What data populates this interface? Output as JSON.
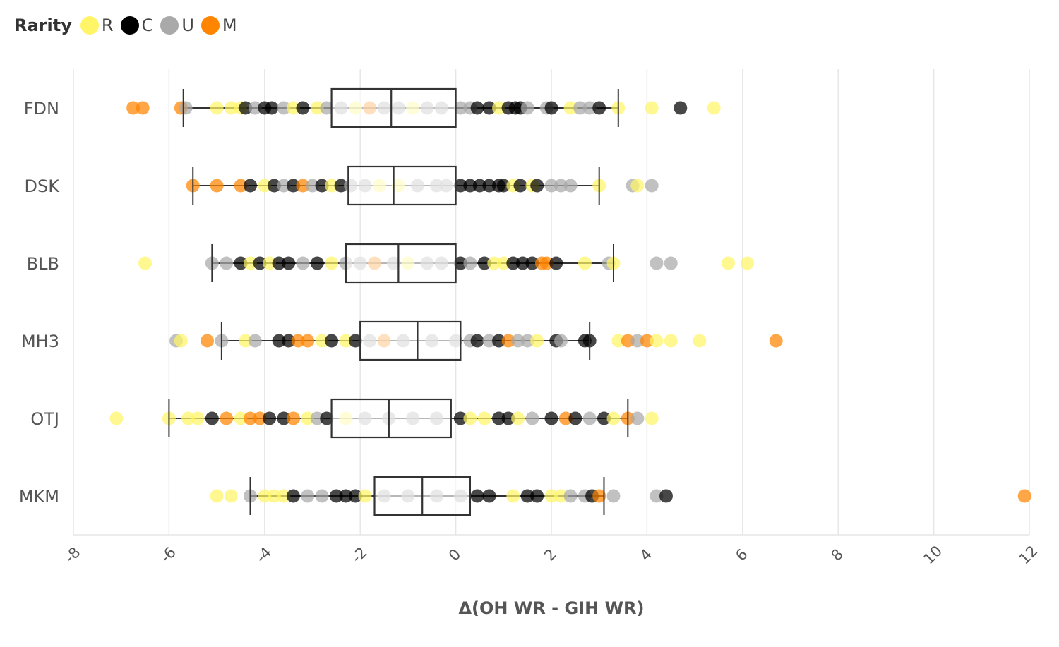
{
  "chart_data": {
    "type": "box-strip",
    "xlabel": "Δ(OH WR - GIH WR)",
    "ylabel": "",
    "xlim": [
      -8,
      12
    ],
    "xticks": [
      -8,
      -6,
      -4,
      -2,
      0,
      2,
      4,
      6,
      8,
      10,
      12
    ],
    "grid": true,
    "legend": {
      "title": "Rarity",
      "placement": "top-left",
      "entries": [
        {
          "key": "R",
          "label": "R",
          "color": "#fff566"
        },
        {
          "key": "C",
          "label": "C",
          "color": "#000000"
        },
        {
          "key": "U",
          "label": "U",
          "color": "#a9a9a9"
        },
        {
          "key": "M",
          "label": "M",
          "color": "#ff8400"
        }
      ]
    },
    "sets": [
      {
        "name": "FDN",
        "box": {
          "whisker_low": -5.7,
          "q1": -2.6,
          "median": -1.35,
          "q3": 0.0,
          "whisker_high": 3.4
        },
        "points": [
          [
            -6.75,
            "M"
          ],
          [
            -6.55,
            "M"
          ],
          [
            -5.75,
            "M"
          ],
          [
            -5.65,
            "U"
          ],
          [
            -5.0,
            "R"
          ],
          [
            -4.7,
            "R"
          ],
          [
            -4.5,
            "R"
          ],
          [
            -4.4,
            "C"
          ],
          [
            -4.2,
            "U"
          ],
          [
            -4.0,
            "C"
          ],
          [
            -3.85,
            "C"
          ],
          [
            -3.6,
            "U"
          ],
          [
            -3.4,
            "R"
          ],
          [
            -3.2,
            "C"
          ],
          [
            -2.9,
            "R"
          ],
          [
            -2.7,
            "U"
          ],
          [
            -2.4,
            "U"
          ],
          [
            -2.1,
            "R"
          ],
          [
            -1.8,
            "M"
          ],
          [
            -1.5,
            "U"
          ],
          [
            -1.2,
            "U"
          ],
          [
            -0.9,
            "R"
          ],
          [
            -0.6,
            "U"
          ],
          [
            -0.3,
            "U"
          ],
          [
            0.1,
            "U"
          ],
          [
            0.3,
            "U"
          ],
          [
            0.45,
            "C"
          ],
          [
            0.7,
            "C"
          ],
          [
            0.9,
            "R"
          ],
          [
            1.1,
            "C"
          ],
          [
            1.25,
            "C"
          ],
          [
            1.35,
            "C"
          ],
          [
            1.5,
            "U"
          ],
          [
            1.9,
            "U"
          ],
          [
            2.0,
            "C"
          ],
          [
            2.4,
            "R"
          ],
          [
            2.6,
            "U"
          ],
          [
            2.8,
            "U"
          ],
          [
            3.0,
            "C"
          ],
          [
            3.4,
            "R"
          ],
          [
            4.1,
            "R"
          ],
          [
            4.7,
            "C"
          ],
          [
            5.4,
            "R"
          ]
        ]
      },
      {
        "name": "DSK",
        "box": {
          "whisker_low": -5.5,
          "q1": -2.25,
          "median": -1.3,
          "q3": 0.0,
          "whisker_high": 3.0
        },
        "points": [
          [
            -5.5,
            "M"
          ],
          [
            -5.0,
            "M"
          ],
          [
            -4.5,
            "M"
          ],
          [
            -4.3,
            "C"
          ],
          [
            -4.0,
            "R"
          ],
          [
            -3.8,
            "C"
          ],
          [
            -3.6,
            "U"
          ],
          [
            -3.4,
            "C"
          ],
          [
            -3.2,
            "M"
          ],
          [
            -3.0,
            "U"
          ],
          [
            -2.8,
            "C"
          ],
          [
            -2.6,
            "R"
          ],
          [
            -2.4,
            "C"
          ],
          [
            -2.2,
            "U"
          ],
          [
            -1.9,
            "U"
          ],
          [
            -1.6,
            "R"
          ],
          [
            -1.2,
            "R"
          ],
          [
            -0.8,
            "U"
          ],
          [
            -0.4,
            "U"
          ],
          [
            -0.2,
            "U"
          ],
          [
            0.1,
            "C"
          ],
          [
            0.3,
            "C"
          ],
          [
            0.5,
            "C"
          ],
          [
            0.7,
            "C"
          ],
          [
            0.9,
            "C"
          ],
          [
            1.0,
            "C"
          ],
          [
            1.2,
            "R"
          ],
          [
            1.35,
            "C"
          ],
          [
            1.6,
            "R"
          ],
          [
            1.7,
            "C"
          ],
          [
            2.0,
            "U"
          ],
          [
            2.2,
            "U"
          ],
          [
            2.4,
            "U"
          ],
          [
            3.0,
            "R"
          ],
          [
            3.7,
            "U"
          ],
          [
            3.8,
            "R"
          ],
          [
            4.1,
            "U"
          ]
        ]
      },
      {
        "name": "BLB",
        "box": {
          "whisker_low": -5.1,
          "q1": -2.3,
          "median": -1.2,
          "q3": 0.0,
          "whisker_high": 3.3
        },
        "points": [
          [
            -6.5,
            "R"
          ],
          [
            -5.1,
            "U"
          ],
          [
            -4.8,
            "U"
          ],
          [
            -4.5,
            "C"
          ],
          [
            -4.3,
            "R"
          ],
          [
            -4.1,
            "C"
          ],
          [
            -3.9,
            "R"
          ],
          [
            -3.7,
            "C"
          ],
          [
            -3.5,
            "C"
          ],
          [
            -3.2,
            "U"
          ],
          [
            -2.9,
            "C"
          ],
          [
            -2.6,
            "R"
          ],
          [
            -2.3,
            "U"
          ],
          [
            -2.0,
            "U"
          ],
          [
            -1.7,
            "M"
          ],
          [
            -1.3,
            "U"
          ],
          [
            -1.0,
            "R"
          ],
          [
            -0.6,
            "U"
          ],
          [
            -0.3,
            "U"
          ],
          [
            0.1,
            "C"
          ],
          [
            0.3,
            "U"
          ],
          [
            0.6,
            "C"
          ],
          [
            0.8,
            "R"
          ],
          [
            1.0,
            "R"
          ],
          [
            1.2,
            "C"
          ],
          [
            1.4,
            "C"
          ],
          [
            1.6,
            "C"
          ],
          [
            1.8,
            "M"
          ],
          [
            1.9,
            "M"
          ],
          [
            2.1,
            "C"
          ],
          [
            2.7,
            "R"
          ],
          [
            3.2,
            "U"
          ],
          [
            3.3,
            "R"
          ],
          [
            4.2,
            "U"
          ],
          [
            4.5,
            "U"
          ],
          [
            5.7,
            "R"
          ],
          [
            6.1,
            "R"
          ]
        ]
      },
      {
        "name": "MH3",
        "box": {
          "whisker_low": -4.9,
          "q1": -2.0,
          "median": -0.8,
          "q3": 0.1,
          "whisker_high": 2.8
        },
        "points": [
          [
            -5.85,
            "U"
          ],
          [
            -5.75,
            "R"
          ],
          [
            -5.2,
            "M"
          ],
          [
            -4.9,
            "U"
          ],
          [
            -4.4,
            "R"
          ],
          [
            -4.2,
            "U"
          ],
          [
            -3.7,
            "C"
          ],
          [
            -3.5,
            "C"
          ],
          [
            -3.3,
            "M"
          ],
          [
            -3.1,
            "M"
          ],
          [
            -2.8,
            "R"
          ],
          [
            -2.6,
            "C"
          ],
          [
            -2.3,
            "R"
          ],
          [
            -2.1,
            "C"
          ],
          [
            -1.8,
            "U"
          ],
          [
            -1.5,
            "M"
          ],
          [
            -1.1,
            "U"
          ],
          [
            -0.5,
            "U"
          ],
          [
            0.0,
            "U"
          ],
          [
            0.3,
            "U"
          ],
          [
            0.45,
            "C"
          ],
          [
            0.7,
            "U"
          ],
          [
            0.9,
            "C"
          ],
          [
            1.1,
            "M"
          ],
          [
            1.3,
            "U"
          ],
          [
            1.5,
            "U"
          ],
          [
            1.7,
            "R"
          ],
          [
            2.1,
            "C"
          ],
          [
            2.2,
            "U"
          ],
          [
            2.7,
            "C"
          ],
          [
            2.8,
            "C"
          ],
          [
            3.4,
            "R"
          ],
          [
            3.6,
            "M"
          ],
          [
            3.8,
            "U"
          ],
          [
            4.0,
            "M"
          ],
          [
            4.2,
            "R"
          ],
          [
            4.5,
            "R"
          ],
          [
            5.1,
            "R"
          ],
          [
            6.7,
            "M"
          ]
        ]
      },
      {
        "name": "OTJ",
        "box": {
          "whisker_low": -6.0,
          "q1": -2.6,
          "median": -1.4,
          "q3": -0.1,
          "whisker_high": 3.6
        },
        "points": [
          [
            -7.1,
            "R"
          ],
          [
            -6.0,
            "R"
          ],
          [
            -5.6,
            "R"
          ],
          [
            -5.4,
            "R"
          ],
          [
            -5.1,
            "C"
          ],
          [
            -4.8,
            "M"
          ],
          [
            -4.5,
            "R"
          ],
          [
            -4.3,
            "M"
          ],
          [
            -4.1,
            "M"
          ],
          [
            -3.9,
            "C"
          ],
          [
            -3.6,
            "C"
          ],
          [
            -3.4,
            "M"
          ],
          [
            -3.1,
            "R"
          ],
          [
            -2.9,
            "U"
          ],
          [
            -2.7,
            "C"
          ],
          [
            -2.3,
            "R"
          ],
          [
            -1.9,
            "U"
          ],
          [
            -1.4,
            "U"
          ],
          [
            -0.9,
            "U"
          ],
          [
            -0.4,
            "U"
          ],
          [
            0.1,
            "C"
          ],
          [
            0.3,
            "R"
          ],
          [
            0.6,
            "R"
          ],
          [
            0.9,
            "C"
          ],
          [
            1.1,
            "C"
          ],
          [
            1.3,
            "R"
          ],
          [
            1.6,
            "U"
          ],
          [
            2.0,
            "C"
          ],
          [
            2.3,
            "M"
          ],
          [
            2.5,
            "C"
          ],
          [
            2.8,
            "U"
          ],
          [
            3.1,
            "C"
          ],
          [
            3.3,
            "R"
          ],
          [
            3.6,
            "M"
          ],
          [
            3.8,
            "U"
          ],
          [
            4.1,
            "R"
          ]
        ]
      },
      {
        "name": "MKM",
        "box": {
          "whisker_low": -4.3,
          "q1": -1.7,
          "median": -0.7,
          "q3": 0.3,
          "whisker_high": 3.1
        },
        "points": [
          [
            -5.0,
            "R"
          ],
          [
            -4.7,
            "R"
          ],
          [
            -4.3,
            "U"
          ],
          [
            -4.0,
            "R"
          ],
          [
            -3.8,
            "R"
          ],
          [
            -3.6,
            "R"
          ],
          [
            -3.4,
            "C"
          ],
          [
            -3.1,
            "U"
          ],
          [
            -2.8,
            "U"
          ],
          [
            -2.5,
            "C"
          ],
          [
            -2.3,
            "C"
          ],
          [
            -2.1,
            "C"
          ],
          [
            -1.9,
            "R"
          ],
          [
            -1.5,
            "U"
          ],
          [
            -1.0,
            "U"
          ],
          [
            -0.4,
            "U"
          ],
          [
            0.1,
            "U"
          ],
          [
            0.45,
            "C"
          ],
          [
            0.7,
            "C"
          ],
          [
            1.2,
            "R"
          ],
          [
            1.5,
            "C"
          ],
          [
            1.7,
            "C"
          ],
          [
            2.0,
            "R"
          ],
          [
            2.2,
            "R"
          ],
          [
            2.4,
            "U"
          ],
          [
            2.7,
            "U"
          ],
          [
            2.85,
            "C"
          ],
          [
            3.0,
            "M"
          ],
          [
            3.3,
            "U"
          ],
          [
            4.2,
            "U"
          ],
          [
            4.4,
            "C"
          ],
          [
            11.9,
            "M"
          ]
        ]
      }
    ]
  }
}
